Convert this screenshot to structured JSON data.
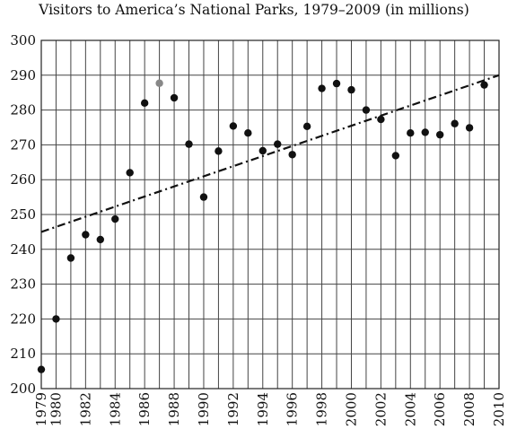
{
  "chart_data": {
    "type": "scatter",
    "title": "Visitors to America’s National Parks, 1979–2009 (in millions)",
    "xlabel": "",
    "ylabel": "",
    "xlim": [
      1979,
      2010
    ],
    "ylim": [
      200,
      300
    ],
    "x_ticks": [
      1979,
      1980,
      1982,
      1984,
      1986,
      1988,
      1990,
      1992,
      1994,
      1996,
      1998,
      2000,
      2002,
      2004,
      2006,
      2008,
      2010
    ],
    "y_ticks": [
      200,
      210,
      220,
      230,
      240,
      250,
      260,
      270,
      280,
      290,
      300
    ],
    "grid": true,
    "points": [
      {
        "x": 1979,
        "y": 205.5,
        "color": "#111111"
      },
      {
        "x": 1980,
        "y": 220,
        "color": "#111111"
      },
      {
        "x": 1981,
        "y": 237.5,
        "color": "#111111"
      },
      {
        "x": 1982,
        "y": 244.2,
        "color": "#111111"
      },
      {
        "x": 1983,
        "y": 242.8,
        "color": "#111111"
      },
      {
        "x": 1984,
        "y": 248.7,
        "color": "#111111"
      },
      {
        "x": 1985,
        "y": 262,
        "color": "#111111"
      },
      {
        "x": 1986,
        "y": 282,
        "color": "#111111"
      },
      {
        "x": 1987,
        "y": 287.7,
        "color": "#888888"
      },
      {
        "x": 1988,
        "y": 283.5,
        "color": "#111111"
      },
      {
        "x": 1989,
        "y": 270.2,
        "color": "#111111"
      },
      {
        "x": 1990,
        "y": 255,
        "color": "#111111"
      },
      {
        "x": 1991,
        "y": 268.2,
        "color": "#111111"
      },
      {
        "x": 1992,
        "y": 275.4,
        "color": "#111111"
      },
      {
        "x": 1993,
        "y": 273.4,
        "color": "#111111"
      },
      {
        "x": 1994,
        "y": 268.3,
        "color": "#111111"
      },
      {
        "x": 1995,
        "y": 270.2,
        "color": "#111111"
      },
      {
        "x": 1996,
        "y": 267.2,
        "color": "#111111"
      },
      {
        "x": 1997,
        "y": 275.3,
        "color": "#111111"
      },
      {
        "x": 1998,
        "y": 286.2,
        "color": "#111111"
      },
      {
        "x": 1999,
        "y": 287.6,
        "color": "#111111"
      },
      {
        "x": 2000,
        "y": 285.8,
        "color": "#111111"
      },
      {
        "x": 2001,
        "y": 280,
        "color": "#111111"
      },
      {
        "x": 2002,
        "y": 277.3,
        "color": "#111111"
      },
      {
        "x": 2003,
        "y": 266.9,
        "color": "#111111"
      },
      {
        "x": 2004,
        "y": 273.4,
        "color": "#111111"
      },
      {
        "x": 2005,
        "y": 273.6,
        "color": "#111111"
      },
      {
        "x": 2006,
        "y": 272.9,
        "color": "#111111"
      },
      {
        "x": 2007,
        "y": 276.1,
        "color": "#111111"
      },
      {
        "x": 2008,
        "y": 274.9,
        "color": "#111111"
      },
      {
        "x": 2009,
        "y": 287.2,
        "color": "#111111"
      }
    ],
    "trend_line": {
      "x": [
        1979,
        2010
      ],
      "y": [
        245,
        290
      ],
      "style": "dash-dot"
    }
  }
}
